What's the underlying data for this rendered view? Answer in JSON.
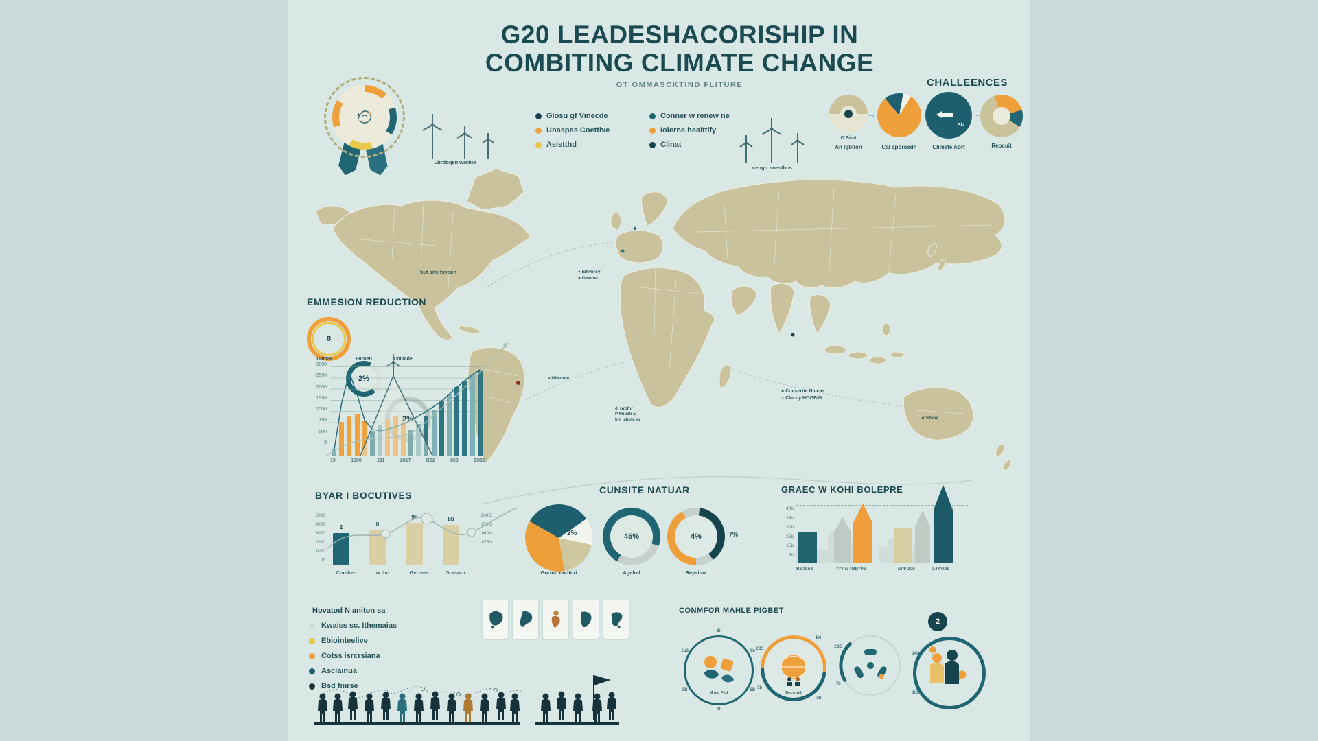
{
  "colors": {
    "ink": "#1d4b54",
    "teal": "#1f6672",
    "teal_dark": "#16444c",
    "orange": "#ef9f3a",
    "yellow": "#e8c84a",
    "khaki": "#d6cda2",
    "land": "#c9c29c",
    "grey": "#c0cac5",
    "panel": "#d9e8e4",
    "outer": "#c9dcda"
  },
  "title": {
    "line1": "G20 LEADESHACORISHIP IN",
    "line2": "COMBITING CLIMATE CHANGE",
    "subtitle": "OT OMMASCKTIND FLITURE"
  },
  "turbines": {
    "left_caption": "Lbrdoqen wrchte",
    "mid_caption": "cengtr snestbns"
  },
  "legend_left": {
    "items": [
      {
        "label": "Glosu gf Vinecde",
        "color": "#16444c"
      },
      {
        "label": "Unaspes Coettive",
        "color": "#f0a23c"
      },
      {
        "label": "Asistthd",
        "color": "#e8c84a"
      }
    ]
  },
  "legend_right": {
    "items": [
      {
        "label": "Conner w renew ne",
        "color": "#1f6672"
      },
      {
        "label": "Iolerne healttify",
        "color": "#ef9f3a"
      },
      {
        "label": "Clinat",
        "color": "#16444c"
      }
    ]
  },
  "challenges": {
    "title": "CHALLEENCES",
    "items": [
      {
        "caption": "An lgbtion",
        "legend": "O Bimt",
        "pie": {
          "from": "270deg",
          "slices": [
            {
              "color": "#c9c29b",
              "pct": 50
            },
            {
              "color": "#e6e4d2",
              "pct": 50
            }
          ]
        }
      },
      {
        "caption": "Cal aporoadh",
        "pie": {
          "from": "-40deg",
          "slices": [
            {
              "color": "#1d5f6e",
              "pct": 14
            },
            {
              "color": "#f2f4ee",
              "pct": 6
            },
            {
              "color": "#ef9f3a",
              "pct": 80
            }
          ]
        }
      },
      {
        "caption": "Climate Aort",
        "inner": "Bb",
        "pie": {
          "from": "0deg",
          "slices": [
            {
              "color": "#1d5f6e",
              "pct": 100
            }
          ]
        }
      },
      {
        "caption": "Reocuit",
        "pie": {
          "from": "-20deg",
          "slices": [
            {
              "color": "#ef9f3a",
              "pct": 26
            },
            {
              "color": "#1f6672",
              "pct": 13
            },
            {
              "color": "#c9c29b",
              "pct": 61
            }
          ]
        }
      }
    ]
  },
  "map": {
    "na_label": "but sifc fsveon",
    "eu_legend": [
      "● Iofwnrsy",
      "● Gwebsi"
    ],
    "amazon_label": "a Nfwdom",
    "sa_lines": [
      "di wrofnr",
      "P Nbuoh al",
      "bm lahbw ou"
    ],
    "right_legend": [
      "● Conserne Nincas",
      "○ Clacdy HOOBIG"
    ],
    "australia_label": "Acstioie"
  },
  "emission": {
    "gauges": [
      {
        "value": "8",
        "caption": "Gamae"
      },
      {
        "value": "2%",
        "caption": "Furoen",
        "pie": {
          "from": "140deg",
          "slices": [
            {
              "color": "#1f6672",
              "pct": 68
            },
            {
              "color": "#d7e2dc",
              "pct": 32
            }
          ]
        }
      },
      {
        "value": "2%",
        "caption": "Coniade"
      }
    ]
  },
  "initiatives": {
    "heading": "Novatod N aniton sa",
    "items": [
      {
        "label": "Kwaiss sc. Ithemaias",
        "color": "#cdd8d2"
      },
      {
        "label": "Ebiointeelive",
        "color": "#e8c84a"
      },
      {
        "label": "Cotss isrcrsiana",
        "color": "#ee9b3d"
      },
      {
        "label": "Asclainua",
        "color": "#1d5f6e"
      },
      {
        "label": "Bsd fmrse",
        "color": "#14323c"
      }
    ]
  },
  "common": {
    "title": "CONMFOR MAHLE PIGBET",
    "circles": [
      {
        "caption": "M md Pod",
        "ticks": [
          "2u3",
          "8I",
          "9b",
          "5B",
          "4I",
          "2B"
        ]
      },
      {
        "caption": "Deco md",
        "ticks": [
          "2B5",
          "B6",
          "7B",
          "5b"
        ],
        "pie": {
          "from": "-90deg",
          "slices": [
            {
              "color": "#ef9f3a",
              "pct": 52
            },
            {
              "color": "#1f6672",
              "pct": 48
            }
          ]
        }
      },
      {
        "caption": "",
        "ticks": [
          "2BB",
          "7b"
        ]
      },
      {
        "caption": "",
        "badge": "2",
        "ticks": [
          "14b",
          "BB"
        ]
      }
    ]
  },
  "chart_data": [
    {
      "type": "bar+line",
      "title": "EMMESION REDUCTION",
      "y_labels": [
        "3000",
        "2500",
        "2000",
        "1500",
        "1000",
        "750",
        "500",
        "0"
      ],
      "x_labels": [
        "19",
        "1980",
        "211",
        "2017",
        "B62",
        "860",
        "20B0"
      ],
      "bar_values": [
        8,
        38,
        45,
        48,
        40,
        28,
        35,
        42,
        45,
        38,
        30,
        36,
        45,
        52,
        62,
        70,
        78,
        85,
        92,
        97
      ],
      "bar_colors": [
        "#7fb0b4",
        "#f0a23c",
        "#f0a23c",
        "#f0a23c",
        "#f0a23c",
        "#2f7582",
        "#7fb0b4",
        "#f0a23c",
        "#f0a23c",
        "#f0a23c",
        "#2f7582",
        "#7fb0b4",
        "#2f7582",
        "#7fb0b4",
        "#2f7582",
        "#7fb0b4",
        "#2f7582",
        "#2f7582",
        "#7fb0b4",
        "#2f7582"
      ],
      "line_values": [
        5,
        60,
        95,
        70,
        40,
        30,
        28,
        30,
        33,
        36,
        40,
        45,
        50,
        56,
        62,
        70,
        78,
        85,
        92,
        98
      ],
      "ylim": [
        0,
        100
      ]
    },
    {
      "type": "bar",
      "title": "BYAR I BOCUTIVES",
      "categories": [
        "Comben",
        "w thd",
        "Gertees",
        "Gorsoor"
      ],
      "values": [
        52,
        57,
        69,
        66
      ],
      "bar_colors": [
        "#1f6672",
        "#d8cfa4",
        "#d8cfa4",
        "#d8cfa4"
      ],
      "value_labels": [
        "2",
        "8",
        "9b",
        "8b"
      ],
      "y_left": [
        "5000",
        "4000",
        "3000",
        "2000",
        "1000",
        "0b"
      ],
      "y_right": [
        "200C",
        "150B",
        "940b",
        "875b"
      ],
      "ylim": [
        0,
        100
      ]
    },
    {
      "type": "pie",
      "title": "CUNSITE NATUAR",
      "annotation": "2%",
      "caption": "Gnrtud nudtdri",
      "pie": {
        "from": "-60deg",
        "slices": [
          {
            "color": "#1d5f6e",
            "pct": 32
          },
          {
            "color": "#f2f4ee",
            "pct": 13
          },
          {
            "color": "#cfc7a0",
            "pct": 19
          },
          {
            "color": "#ef9f3a",
            "pct": 36
          }
        ]
      },
      "gauges": [
        {
          "value": "46%",
          "caption": "Agelod",
          "pie": {
            "from": "210deg",
            "slices": [
              {
                "color": "#1f6672",
                "pct": 72
              },
              {
                "color": "#c5cfcb",
                "pct": 28
              }
            ]
          }
        },
        {
          "value": "4%",
          "caption": "Reysime",
          "side": "7%",
          "pie": {
            "from": "180deg",
            "slices": [
              {
                "color": "#ef9f3a",
                "pct": 42
              },
              {
                "color": "#c5cfcb",
                "pct": 10
              },
              {
                "color": "#16444c",
                "pct": 38
              },
              {
                "color": "#c5cfcb",
                "pct": 10
              }
            ]
          }
        }
      ]
    },
    {
      "type": "bar",
      "title": "GRAEC W KOHI BOLEPRE",
      "y_labels": [
        "40b",
        "35b",
        "30b",
        "25b",
        "15b",
        "5b"
      ],
      "x_labels": [
        "BB10u3",
        "77T-E 4BB70B",
        "EPFG05",
        "L4XT0B"
      ],
      "bars": [
        {
          "shape": "rect",
          "color": "#21636f",
          "h_pct": 38
        },
        {
          "shape": "spire",
          "color": "#c0cac5",
          "h_pct": 57
        },
        {
          "shape": "spire",
          "color": "#f09d3b",
          "h_pct": 74
        },
        {
          "shape": "rect",
          "color": "#d6cda2",
          "h_pct": 44
        },
        {
          "shape": "spire",
          "color": "#c0cac5",
          "h_pct": 66
        },
        {
          "shape": "spire",
          "color": "#1d5a68",
          "h_pct": 97
        }
      ],
      "ylim": [
        0,
        100
      ]
    }
  ]
}
